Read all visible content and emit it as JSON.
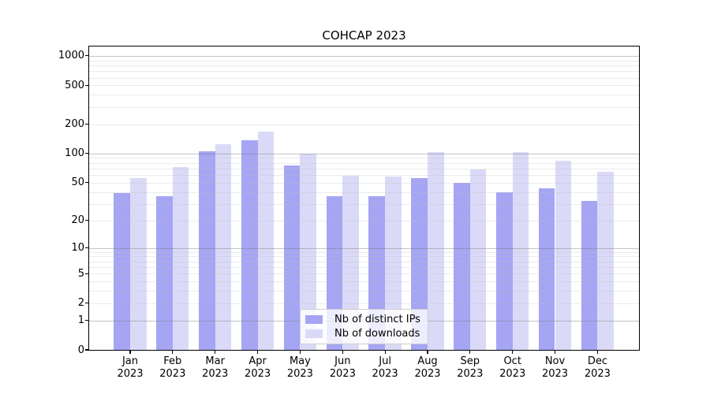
{
  "title": "COHCAP 2023",
  "chart_data": {
    "type": "bar",
    "title": "COHCAP 2023",
    "categories": [
      "Jan 2023",
      "Feb 2023",
      "Mar 2023",
      "Apr 2023",
      "May 2023",
      "Jun 2023",
      "Jul 2023",
      "Aug 2023",
      "Sep 2023",
      "Oct 2023",
      "Nov 2023",
      "Dec 2023"
    ],
    "x_tick_line1": [
      "Jan",
      "Feb",
      "Mar",
      "Apr",
      "May",
      "Jun",
      "Jul",
      "Aug",
      "Sep",
      "Oct",
      "Nov",
      "Dec"
    ],
    "x_tick_line2": "2023",
    "series": [
      {
        "name": "Nb of distinct IPs",
        "color": "#a5a5f3",
        "values": [
          39,
          36,
          105,
          137,
          75,
          36,
          36,
          56,
          50,
          40,
          44,
          32
        ]
      },
      {
        "name": "Nb of downloads",
        "color": "#dadaf8",
        "values": [
          56,
          73,
          124,
          169,
          99,
          59,
          58,
          103,
          69,
          103,
          85,
          65
        ]
      }
    ],
    "y_scale": "log10(1+value)",
    "y_ticks": [
      1000,
      500,
      200,
      100,
      50,
      20,
      10,
      5,
      2,
      1,
      0
    ],
    "y_major_gridlines": [
      1,
      10,
      100,
      1000
    ],
    "y_minor_gridline_bases": [
      1,
      10,
      100
    ],
    "ylim": [
      0,
      1000
    ],
    "grid": true,
    "legend_position": "lower center",
    "background_color": "#ffffff",
    "axis_color": "#000000"
  },
  "legend": {
    "items": [
      {
        "label": "Nb of distinct IPs",
        "color": "#a5a5f3"
      },
      {
        "label": "Nb of downloads",
        "color": "#dadaf8"
      }
    ]
  }
}
